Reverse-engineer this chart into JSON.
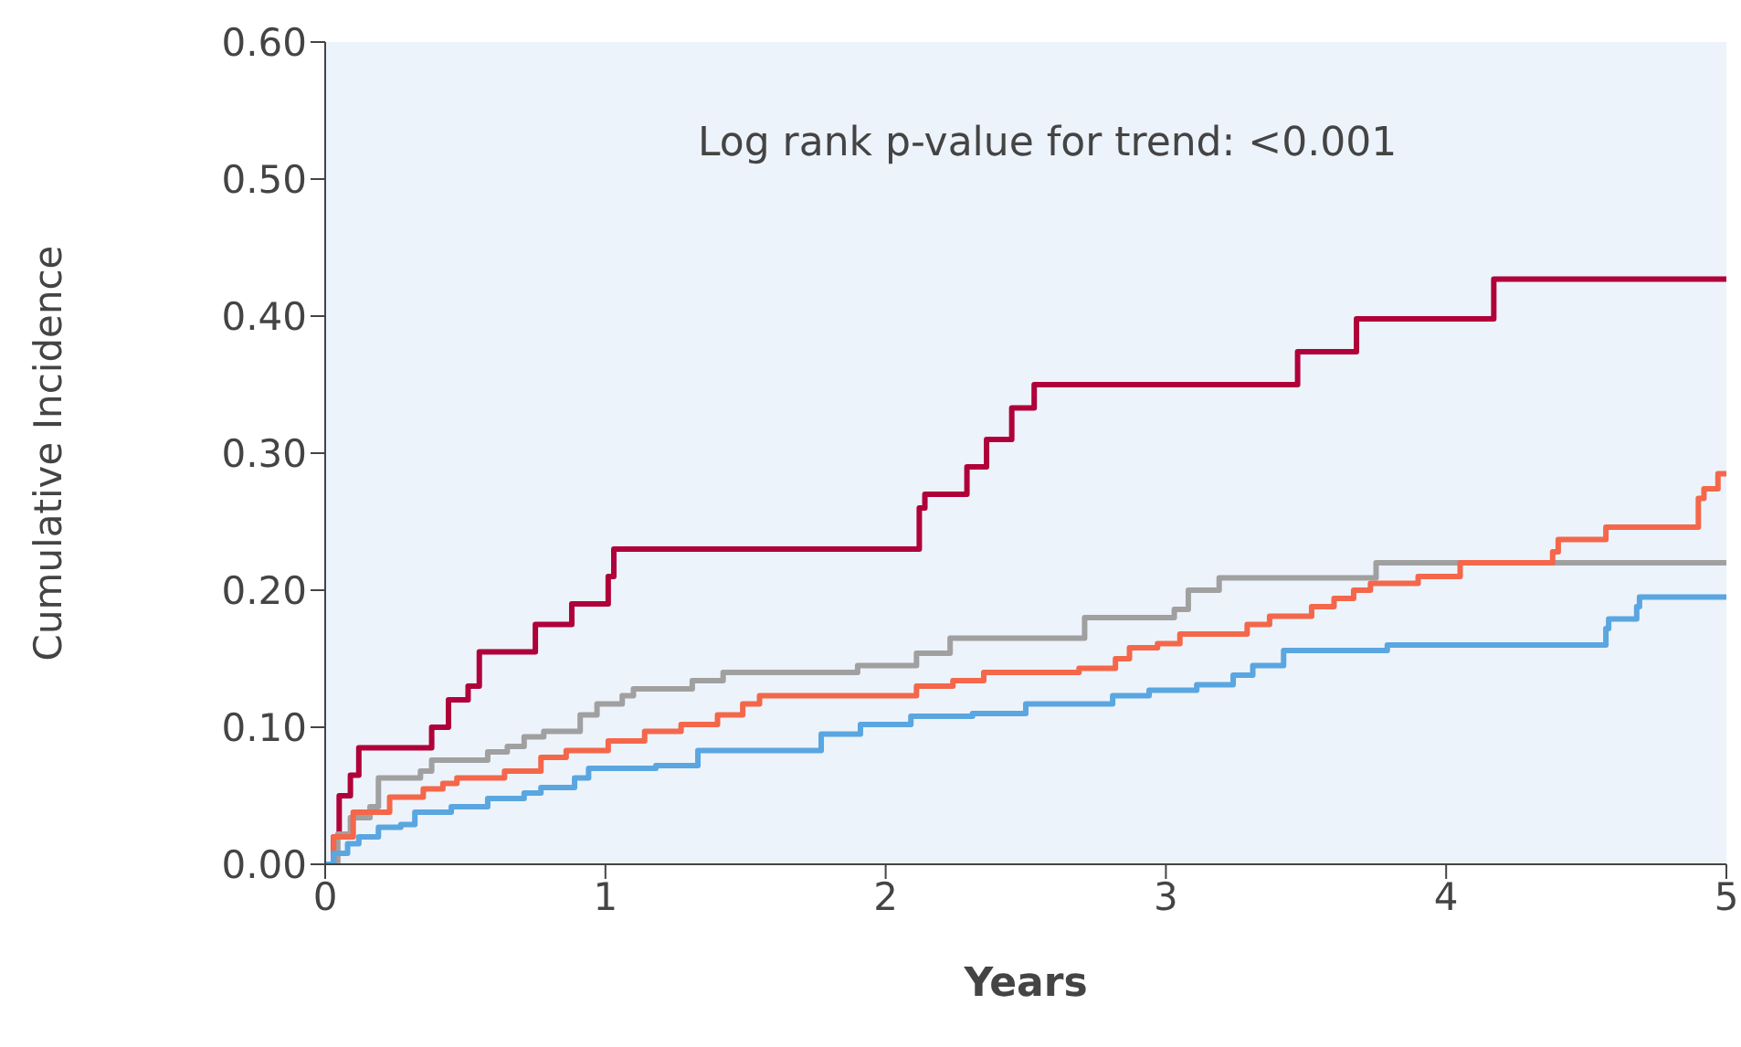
{
  "chart_data": {
    "type": "step",
    "xlabel": "Years",
    "ylabel": "Cumulative Incidence",
    "annotations": [
      "Log rank p-value for trend: <0.001"
    ],
    "xlim": [
      0,
      5
    ],
    "xticks": [
      0,
      1,
      2,
      3,
      4,
      5
    ],
    "ylim": [
      0,
      0.6
    ],
    "yticks": [
      {
        "value": 0,
        "label": "0.00"
      },
      {
        "value": 0.1,
        "label": "0.10"
      },
      {
        "value": 0.2,
        "label": "0.20"
      },
      {
        "value": 0.3,
        "label": "0.30"
      },
      {
        "value": 0.4,
        "label": "0.40"
      },
      {
        "value": 0.5,
        "label": "0.50"
      },
      {
        "value": 0.6,
        "label": "0.60"
      }
    ],
    "grid": false,
    "legend": false,
    "marker": "none",
    "line_style": "solid",
    "series": [
      {
        "color": "#b0003a",
        "x": [
          0,
          0.03,
          0.05,
          0.09,
          0.12,
          0.38,
          0.44,
          0.51,
          0.55,
          0.75,
          0.88,
          1.01,
          1.03,
          2.12,
          2.14,
          2.29,
          2.36,
          2.45,
          2.53,
          3.47,
          3.68,
          4.17,
          5
        ],
        "values": [
          0,
          0.02,
          0.05,
          0.065,
          0.085,
          0.1,
          0.12,
          0.13,
          0.155,
          0.175,
          0.19,
          0.21,
          0.23,
          0.26,
          0.27,
          0.29,
          0.31,
          0.333,
          0.35,
          0.374,
          0.398,
          0.427,
          0.427
        ]
      },
      {
        "color": "#a0a0a0",
        "x": [
          0,
          0.045,
          0.09,
          0.16,
          0.19,
          0.34,
          0.38,
          0.58,
          0.65,
          0.71,
          0.78,
          0.91,
          0.97,
          1.06,
          1.1,
          1.31,
          1.42,
          1.9,
          2.11,
          2.23,
          2.71,
          3.03,
          3.08,
          3.19,
          3.75,
          5
        ],
        "values": [
          0,
          0.022,
          0.034,
          0.042,
          0.063,
          0.068,
          0.076,
          0.082,
          0.086,
          0.093,
          0.097,
          0.109,
          0.117,
          0.123,
          0.128,
          0.134,
          0.14,
          0.145,
          0.154,
          0.165,
          0.18,
          0.186,
          0.2,
          0.209,
          0.22,
          0.22
        ]
      },
      {
        "color": "#f4674a",
        "x": [
          0,
          0.03,
          0.1,
          0.23,
          0.35,
          0.42,
          0.47,
          0.64,
          0.77,
          0.86,
          1.01,
          1.14,
          1.27,
          1.4,
          1.49,
          1.55,
          2.11,
          2.24,
          2.35,
          2.69,
          2.82,
          2.87,
          2.97,
          3.05,
          3.29,
          3.37,
          3.52,
          3.6,
          3.67,
          3.73,
          3.9,
          4.05,
          4.38,
          4.4,
          4.57,
          4.9,
          4.92,
          4.97,
          5
        ],
        "values": [
          0,
          0.02,
          0.038,
          0.049,
          0.055,
          0.059,
          0.063,
          0.068,
          0.078,
          0.083,
          0.09,
          0.097,
          0.102,
          0.109,
          0.117,
          0.123,
          0.13,
          0.134,
          0.14,
          0.143,
          0.15,
          0.158,
          0.161,
          0.168,
          0.175,
          0.181,
          0.188,
          0.194,
          0.2,
          0.205,
          0.21,
          0.22,
          0.228,
          0.237,
          0.246,
          0.267,
          0.274,
          0.285,
          0.285
        ]
      },
      {
        "color": "#5aa6e0",
        "x": [
          0,
          0.03,
          0.08,
          0.12,
          0.19,
          0.27,
          0.32,
          0.45,
          0.58,
          0.71,
          0.77,
          0.89,
          0.94,
          1.18,
          1.33,
          1.77,
          1.91,
          2.09,
          2.31,
          2.5,
          2.81,
          2.94,
          3.11,
          3.24,
          3.31,
          3.42,
          3.79,
          4.57,
          4.58,
          4.68,
          4.69,
          5
        ],
        "values": [
          0,
          0.008,
          0.015,
          0.02,
          0.027,
          0.029,
          0.038,
          0.042,
          0.048,
          0.052,
          0.056,
          0.063,
          0.07,
          0.072,
          0.083,
          0.095,
          0.102,
          0.108,
          0.11,
          0.117,
          0.123,
          0.127,
          0.131,
          0.138,
          0.145,
          0.156,
          0.16,
          0.172,
          0.179,
          0.188,
          0.195,
          0.195
        ]
      }
    ]
  }
}
